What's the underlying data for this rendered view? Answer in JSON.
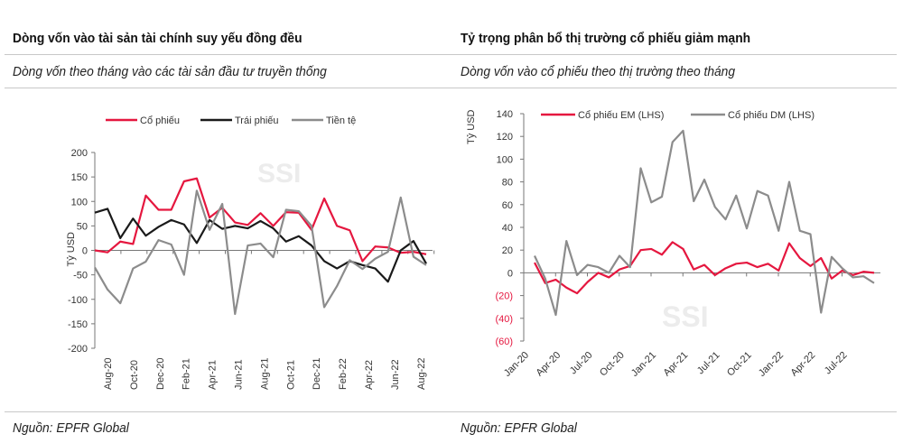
{
  "left": {
    "title": "Dòng vốn vào tài sản tài chính suy yếu đồng đều",
    "subtitle": "Dòng vốn theo tháng vào các tài sản đầu tư truyền thống",
    "source": "Nguồn: EPFR Global"
  },
  "right": {
    "title": "Tỷ trọng phân bổ thị trường cổ phiếu giảm mạnh",
    "subtitle": "Dòng vốn vào cổ phiếu theo thị trường theo tháng",
    "source": "Nguồn: EPFR Global"
  },
  "watermark": "SSI",
  "chart_data": [
    {
      "type": "line",
      "ylabel": "Tỷ USD",
      "ylim": [
        -200,
        200
      ],
      "yticks": [
        200,
        150,
        100,
        50,
        0,
        -50,
        -100,
        -150,
        -200
      ],
      "tick_labels": [
        "Aug-20",
        "Oct-20",
        "Dec-20",
        "Feb-21",
        "Apr-21",
        "Jun-21",
        "Aug-21",
        "Oct-21",
        "Dec-21",
        "Feb-22",
        "Apr-22",
        "Jun-22",
        "Aug-22"
      ],
      "legend_position": "top",
      "series": [
        {
          "name": "Cổ phiếu",
          "color": "#e5173f",
          "values": [
            0,
            -4,
            18,
            13,
            112,
            83,
            83,
            141,
            147,
            67,
            87,
            57,
            52,
            76,
            50,
            78,
            77,
            42,
            106,
            50,
            41,
            -22,
            8,
            6,
            -5,
            -3,
            -8
          ]
        },
        {
          "name": "Trái phiếu",
          "color": "#1a1a1a",
          "values": [
            77,
            85,
            25,
            65,
            30,
            48,
            62,
            53,
            15,
            62,
            44,
            50,
            45,
            60,
            45,
            18,
            29,
            10,
            -22,
            -37,
            -22,
            -30,
            -37,
            -64,
            0,
            19,
            -27
          ]
        },
        {
          "name": "Tiền tệ",
          "color": "#8c8c8c",
          "values": [
            -35,
            -80,
            -108,
            -37,
            -23,
            21,
            12,
            -50,
            122,
            42,
            95,
            -130,
            10,
            14,
            -14,
            83,
            80,
            50,
            -116,
            -73,
            -20,
            -38,
            -17,
            -3,
            108,
            -13,
            -30
          ]
        }
      ]
    },
    {
      "type": "line",
      "ylabel": "Tỷ USD",
      "ylim": [
        -60,
        140
      ],
      "yticks": [
        140,
        120,
        100,
        80,
        60,
        40,
        20,
        0,
        -20,
        -40,
        -60
      ],
      "ytick_labels": [
        "140",
        "120",
        "100",
        "80",
        "60",
        "40",
        "20",
        "0",
        "(20)",
        "(40)",
        "(60)"
      ],
      "negative_tick_color": "#e5173f",
      "x": [
        "Feb-20",
        "Mar-20",
        "Apr-20",
        "May-20",
        "Jun-20",
        "Jul-20",
        "Aug-20",
        "Sep-20",
        "Oct-20",
        "Nov-20",
        "Dec-20",
        "Jan-21",
        "Feb-21",
        "Mar-21",
        "Apr-21",
        "May-21",
        "Jun-21",
        "Jul-21",
        "Aug-21",
        "Sep-21",
        "Oct-21",
        "Nov-21",
        "Dec-21",
        "Jan-22",
        "Feb-22",
        "Mar-22",
        "Apr-22",
        "May-22",
        "Jun-22",
        "Jul-22",
        "Aug-22",
        "Sep-22",
        "Oct-22"
      ],
      "tick_labels": [
        "Jan-20",
        "Apr-20",
        "Jul-20",
        "Oct-20",
        "Jan-21",
        "Apr-21",
        "Jul-21",
        "Oct-21",
        "Jan-22",
        "Apr-22",
        "Jul-22"
      ],
      "legend_position": "top",
      "series": [
        {
          "name": "Cổ phiếu EM (LHS)",
          "color": "#e5173f",
          "values": [
            9,
            -9,
            -6,
            -13,
            -18,
            -8,
            0,
            -4,
            3,
            6,
            20,
            21,
            16,
            27,
            21,
            3,
            7,
            -2,
            4,
            8,
            9,
            5,
            8,
            2,
            26,
            13,
            6,
            13,
            -5,
            2,
            -2,
            1,
            0
          ]
        },
        {
          "name": "Cổ phiếu DM (LHS)",
          "color": "#8c8c8c",
          "values": [
            15,
            -5,
            -37,
            28,
            -2,
            7,
            5,
            0,
            15,
            5,
            92,
            62,
            67,
            115,
            125,
            63,
            82,
            58,
            47,
            68,
            39,
            72,
            68,
            37,
            80,
            37,
            34,
            -35,
            14,
            4,
            -4,
            -3,
            -9
          ]
        }
      ]
    }
  ]
}
